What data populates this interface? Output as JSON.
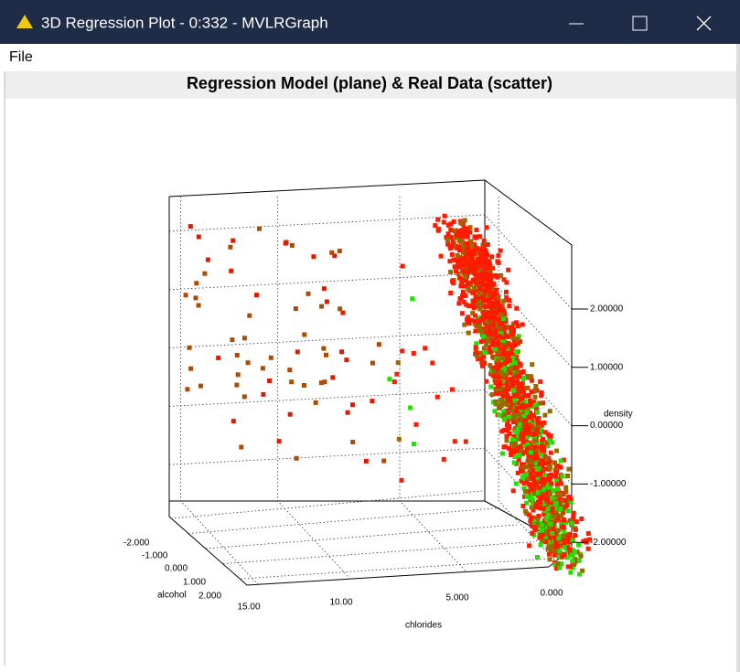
{
  "window": {
    "title": "3D Regression Plot - 0:332 - MVLRGraph",
    "menu": [
      "File"
    ]
  },
  "plot": {
    "title": "Regression Model (plane) & Real Data (scatter)",
    "z_axis": {
      "label": "density",
      "ticks": [
        "2.00000",
        "1.00000",
        "0.00000",
        "-1.00000",
        "-2.00000"
      ]
    },
    "x_axis": {
      "label": "alcohol",
      "ticks": [
        "-2.000",
        "-1.000",
        "0.000",
        "1.000",
        "2.000"
      ]
    },
    "y_axis": {
      "label": "chlorides",
      "ticks": [
        "15.00",
        "10.00",
        "5.000",
        "0.000"
      ]
    }
  }
}
